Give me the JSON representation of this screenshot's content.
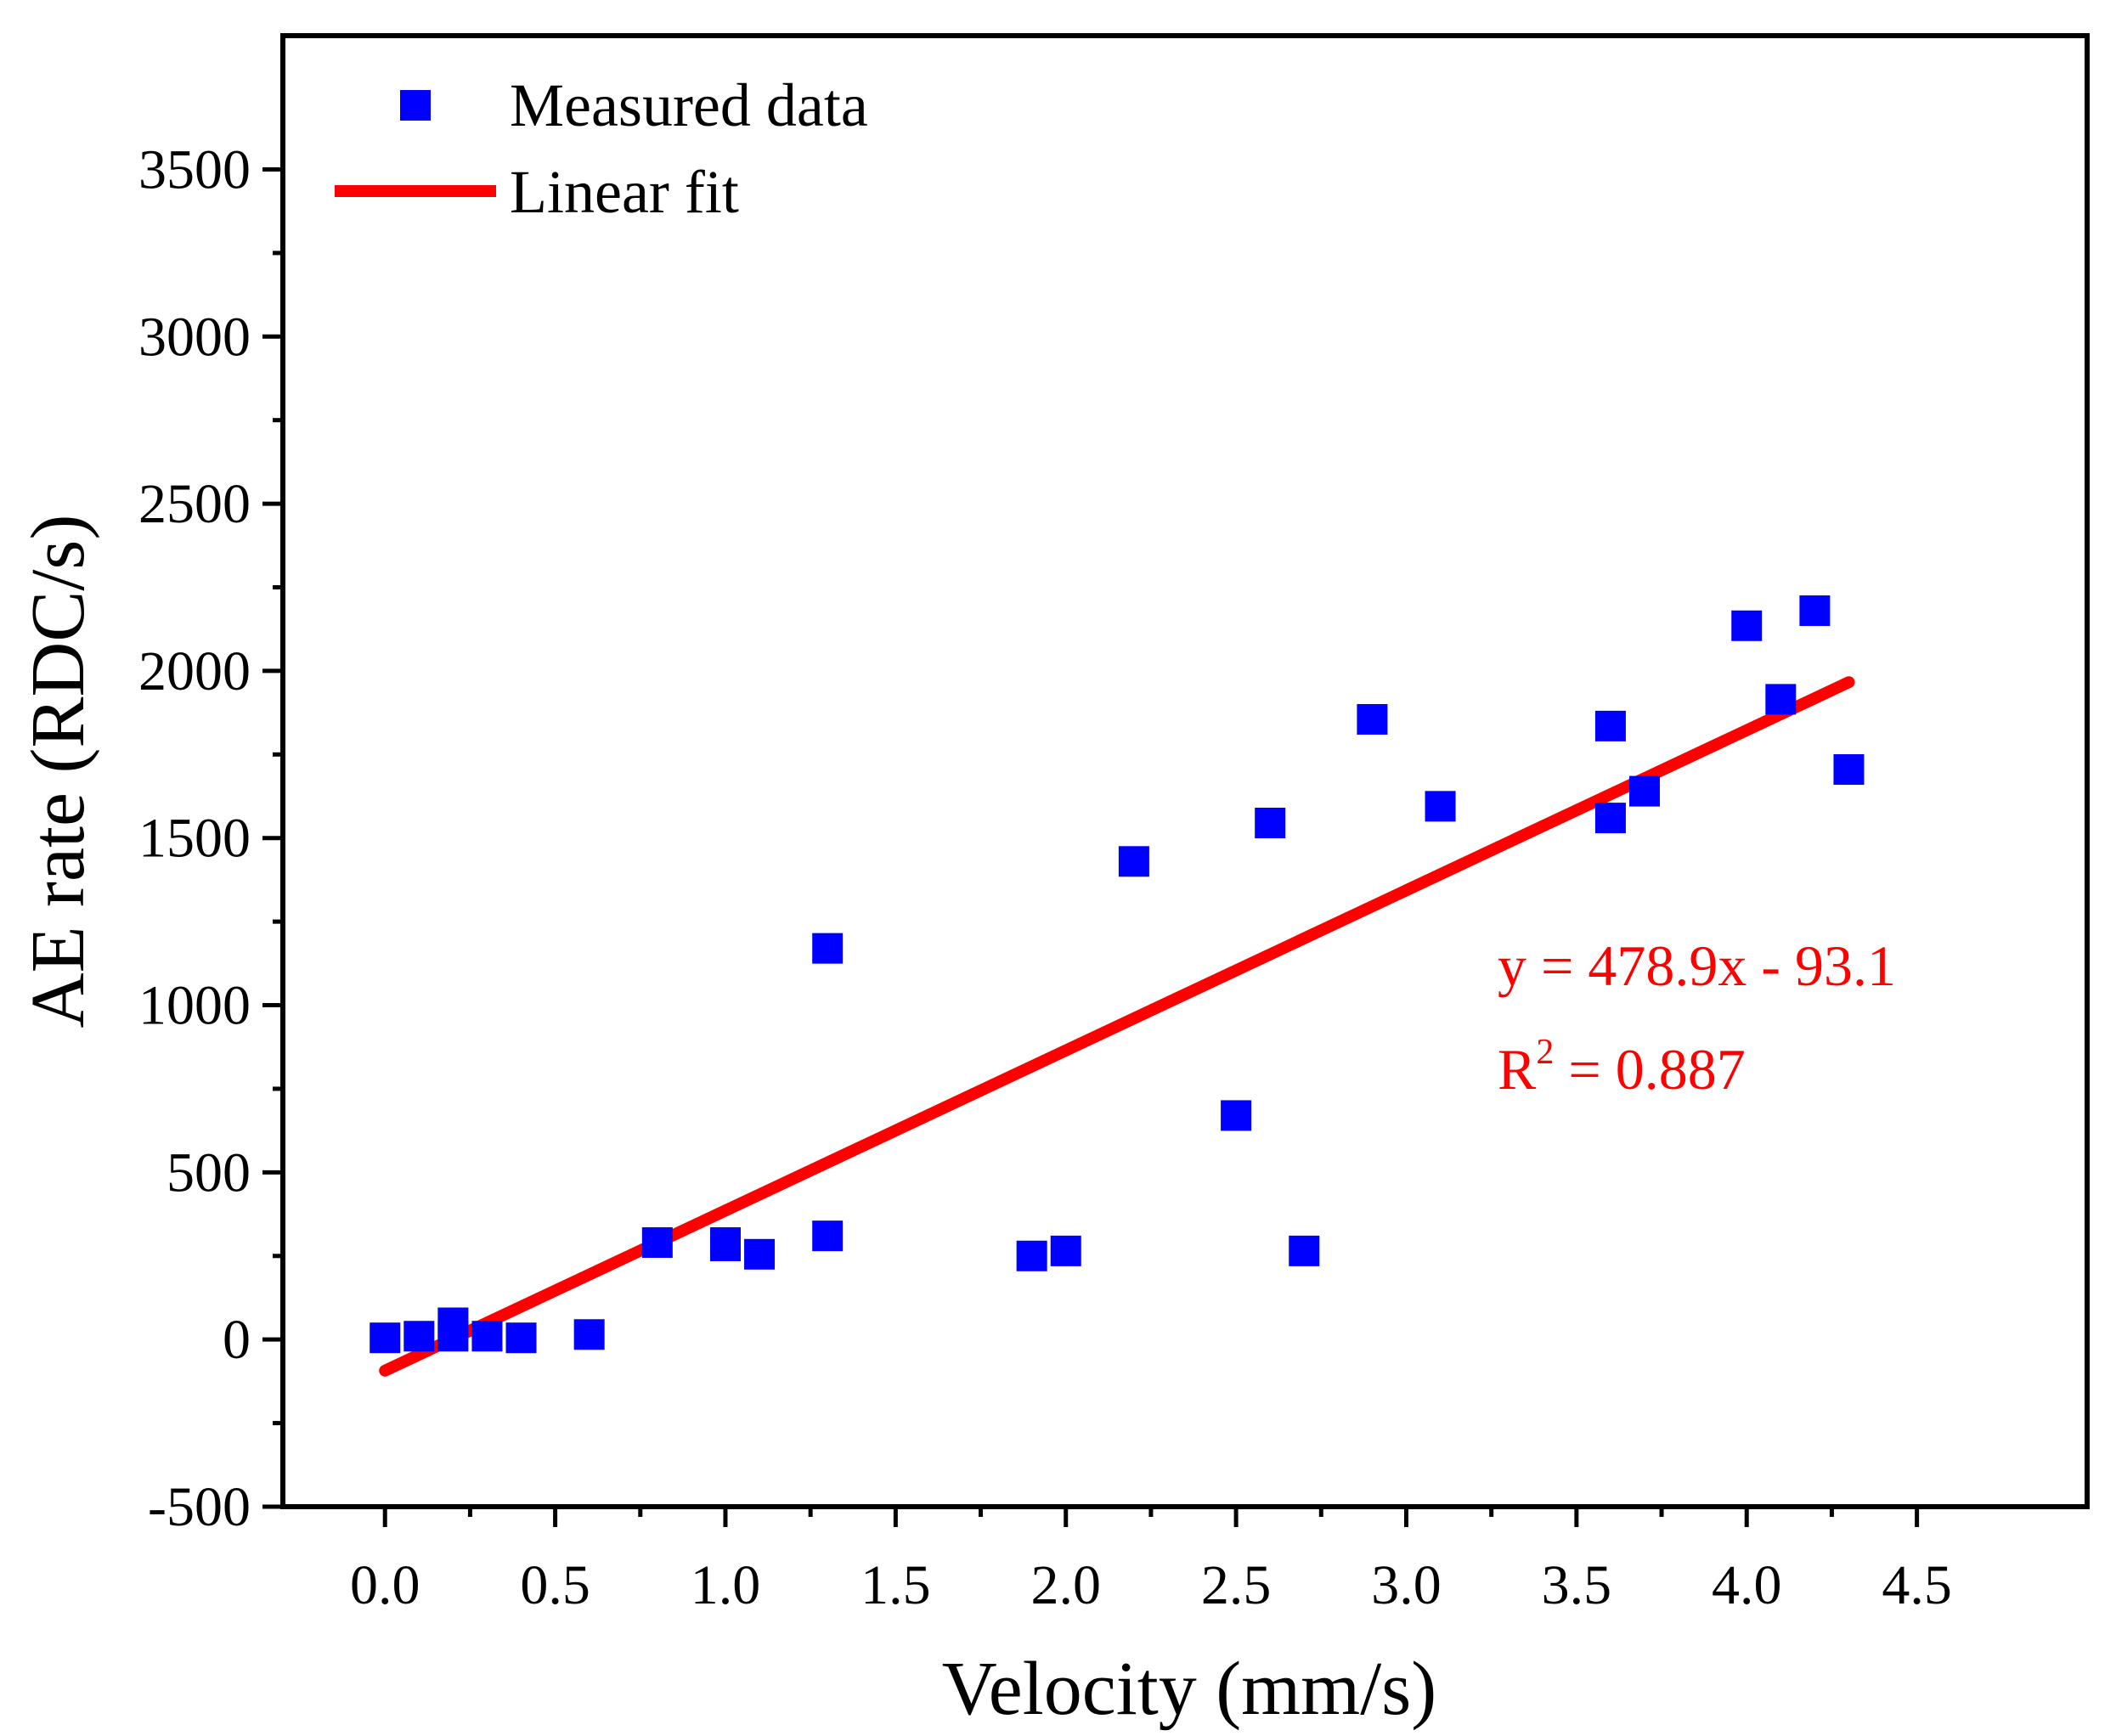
{
  "chart_data": {
    "type": "scatter",
    "xlabel": "Velocity (mm/s)",
    "ylabel": "AE rate (RDC/s)",
    "xlim": [
      -0.3,
      5.0
    ],
    "ylim": [
      -500,
      3900
    ],
    "xticks": [
      0.0,
      0.5,
      1.0,
      1.5,
      2.0,
      2.5,
      3.0,
      3.5,
      4.0,
      4.5
    ],
    "xtick_labels": [
      "0.0",
      "0.5",
      "1.0",
      "1.5",
      "2.0",
      "2.5",
      "3.0",
      "3.5",
      "4.0",
      "4.5"
    ],
    "yticks": [
      -500,
      0,
      500,
      1000,
      1500,
      2000,
      2500,
      3000,
      3500
    ],
    "ytick_labels": [
      "-500",
      "0",
      "500",
      "1000",
      "1500",
      "2000",
      "2500",
      "3000",
      "3500"
    ],
    "series": [
      {
        "name": "Measured data",
        "kind": "scatter",
        "marker": "square",
        "color": "#0000ff",
        "points": [
          [
            0.0,
            5
          ],
          [
            0.1,
            10
          ],
          [
            0.2,
            50
          ],
          [
            0.2,
            10
          ],
          [
            0.3,
            10
          ],
          [
            0.4,
            5
          ],
          [
            0.6,
            15
          ],
          [
            0.8,
            290
          ],
          [
            1.0,
            290
          ],
          [
            1.0,
            280
          ],
          [
            1.1,
            255
          ],
          [
            1.3,
            1170
          ],
          [
            1.3,
            310
          ],
          [
            1.9,
            250
          ],
          [
            2.0,
            265
          ],
          [
            2.2,
            1430
          ],
          [
            2.5,
            670
          ],
          [
            2.6,
            1545
          ],
          [
            2.7,
            265
          ],
          [
            2.9,
            1855
          ],
          [
            3.1,
            1595
          ],
          [
            3.6,
            1835
          ],
          [
            3.6,
            1560
          ],
          [
            3.7,
            1640
          ],
          [
            4.0,
            2135
          ],
          [
            4.1,
            1915
          ],
          [
            4.2,
            2180
          ],
          [
            4.3,
            1705
          ]
        ]
      },
      {
        "name": "Linear fit",
        "kind": "line",
        "color": "#ff0000",
        "slope": 478.9,
        "intercept": -93.1,
        "x_range": [
          0.0,
          4.3
        ]
      }
    ],
    "annotations": {
      "equation": "y = 478.9x - 93.1",
      "r2_prefix": "R",
      "r2_sup": "2",
      "r2_value": " = 0.887"
    },
    "legend_position": "top-left",
    "grid": false
  }
}
